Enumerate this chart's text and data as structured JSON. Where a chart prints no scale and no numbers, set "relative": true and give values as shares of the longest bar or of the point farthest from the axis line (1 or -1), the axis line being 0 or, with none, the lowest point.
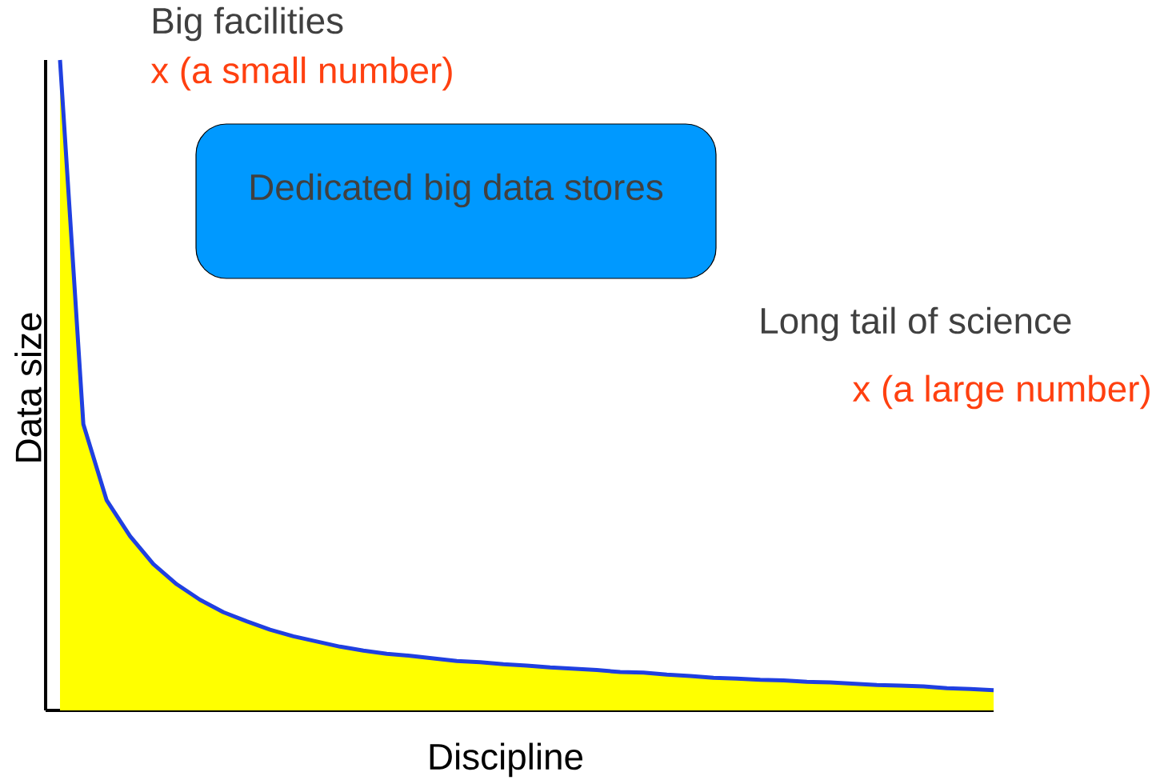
{
  "chart_data": {
    "type": "area",
    "relative": true,
    "xlabel": "Discipline",
    "ylabel": "Data size",
    "categories": [
      null,
      null,
      null,
      null,
      null,
      null,
      null,
      null,
      null,
      null,
      null,
      null,
      null,
      null,
      null,
      null,
      null,
      null,
      null,
      null,
      null,
      null,
      null,
      null,
      null,
      null,
      null,
      null,
      null,
      null,
      null,
      null,
      null,
      null,
      null,
      null,
      null,
      null,
      null,
      null,
      null
    ],
    "series": [
      {
        "color": "#ffff00",
        "values": [
          1.0,
          0.44,
          0.323,
          0.268,
          0.225,
          0.194,
          0.17,
          0.151,
          0.137,
          0.124,
          0.114,
          0.106,
          0.098,
          0.092,
          0.087,
          0.084,
          0.08,
          0.076,
          0.074,
          0.071,
          0.069,
          0.066,
          0.064,
          0.062,
          0.059,
          0.058,
          0.055,
          0.053,
          0.05,
          0.049,
          0.047,
          0.046,
          0.044,
          0.043,
          0.041,
          0.039,
          0.038,
          0.037,
          0.034,
          0.033,
          0.031
        ]
      },
      {
        "type": "line",
        "color": "#2040e0",
        "values": [
          1.0,
          0.44,
          0.323,
          0.268,
          0.225,
          0.194,
          0.17,
          0.151,
          0.137,
          0.124,
          0.114,
          0.106,
          0.098,
          0.092,
          0.087,
          0.084,
          0.08,
          0.076,
          0.074,
          0.071,
          0.069,
          0.066,
          0.064,
          0.062,
          0.059,
          0.058,
          0.055,
          0.053,
          0.05,
          0.049,
          0.047,
          0.046,
          0.044,
          0.043,
          0.041,
          0.039,
          0.038,
          0.037,
          0.034,
          0.033,
          0.031
        ]
      }
    ],
    "annotations": [
      "Big facilities",
      "x (a small number)",
      "Dedicated big data stores",
      "Long tail of science",
      "x (a large number)"
    ]
  }
}
